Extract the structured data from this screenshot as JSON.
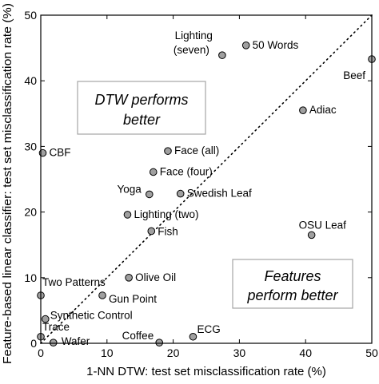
{
  "chart_data": {
    "type": "scatter",
    "xlabel": "1-NN DTW: test set misclassification rate (%)",
    "ylabel": "Feature-based linear classifier: test set misclassification rate (%)",
    "xlim": [
      0,
      50
    ],
    "ylim": [
      0,
      50
    ],
    "x_ticks": [
      0,
      10,
      20,
      30,
      40,
      50
    ],
    "y_ticks": [
      0,
      10,
      20,
      30,
      40,
      50
    ],
    "grid": false,
    "diagonal_reference": true,
    "point_color": "#a0a0a0",
    "box_color": "#a5a5a5",
    "points": [
      {
        "label": "50 Words",
        "x": 31.0,
        "y": 45.4
      },
      {
        "label": "Lighting",
        "label2": "(seven)",
        "x": 27.4,
        "y": 43.9
      },
      {
        "label": "Beef",
        "x": 50.0,
        "y": 43.3
      },
      {
        "label": "Adiac",
        "x": 39.6,
        "y": 35.5
      },
      {
        "label": "CBF",
        "x": 0.3,
        "y": 29.0
      },
      {
        "label": "Face (all)",
        "x": 19.2,
        "y": 29.3
      },
      {
        "label": "Face (four)",
        "x": 17.0,
        "y": 26.1
      },
      {
        "label": "Yoga",
        "x": 16.4,
        "y": 22.7
      },
      {
        "label": "Swedish Leaf",
        "x": 21.1,
        "y": 22.8
      },
      {
        "label": "Lighting (two)",
        "x": 13.1,
        "y": 19.6
      },
      {
        "label": "Fish",
        "x": 16.7,
        "y": 17.1
      },
      {
        "label": "OSU Leaf",
        "x": 40.9,
        "y": 16.5
      },
      {
        "label": "Olive Oil",
        "x": 13.3,
        "y": 10.0
      },
      {
        "label": "Two Patterns",
        "x": 0.0,
        "y": 7.3
      },
      {
        "label": "Gun Point",
        "x": 9.3,
        "y": 7.3
      },
      {
        "label": "Synthetic Control",
        "x": 0.7,
        "y": 3.7
      },
      {
        "label": "Trace",
        "x": 0.0,
        "y": 1.0
      },
      {
        "label": "Wafer",
        "x": 1.9,
        "y": 0.1
      },
      {
        "label": "Coffee",
        "x": 17.9,
        "y": 0.1
      },
      {
        "label": "ECG",
        "x": 23.0,
        "y": 1.0
      }
    ],
    "annotations": {
      "dtw_line1": "DTW performs",
      "dtw_line2": "better",
      "feat_line1": "Features",
      "feat_line2": "perform better"
    }
  }
}
